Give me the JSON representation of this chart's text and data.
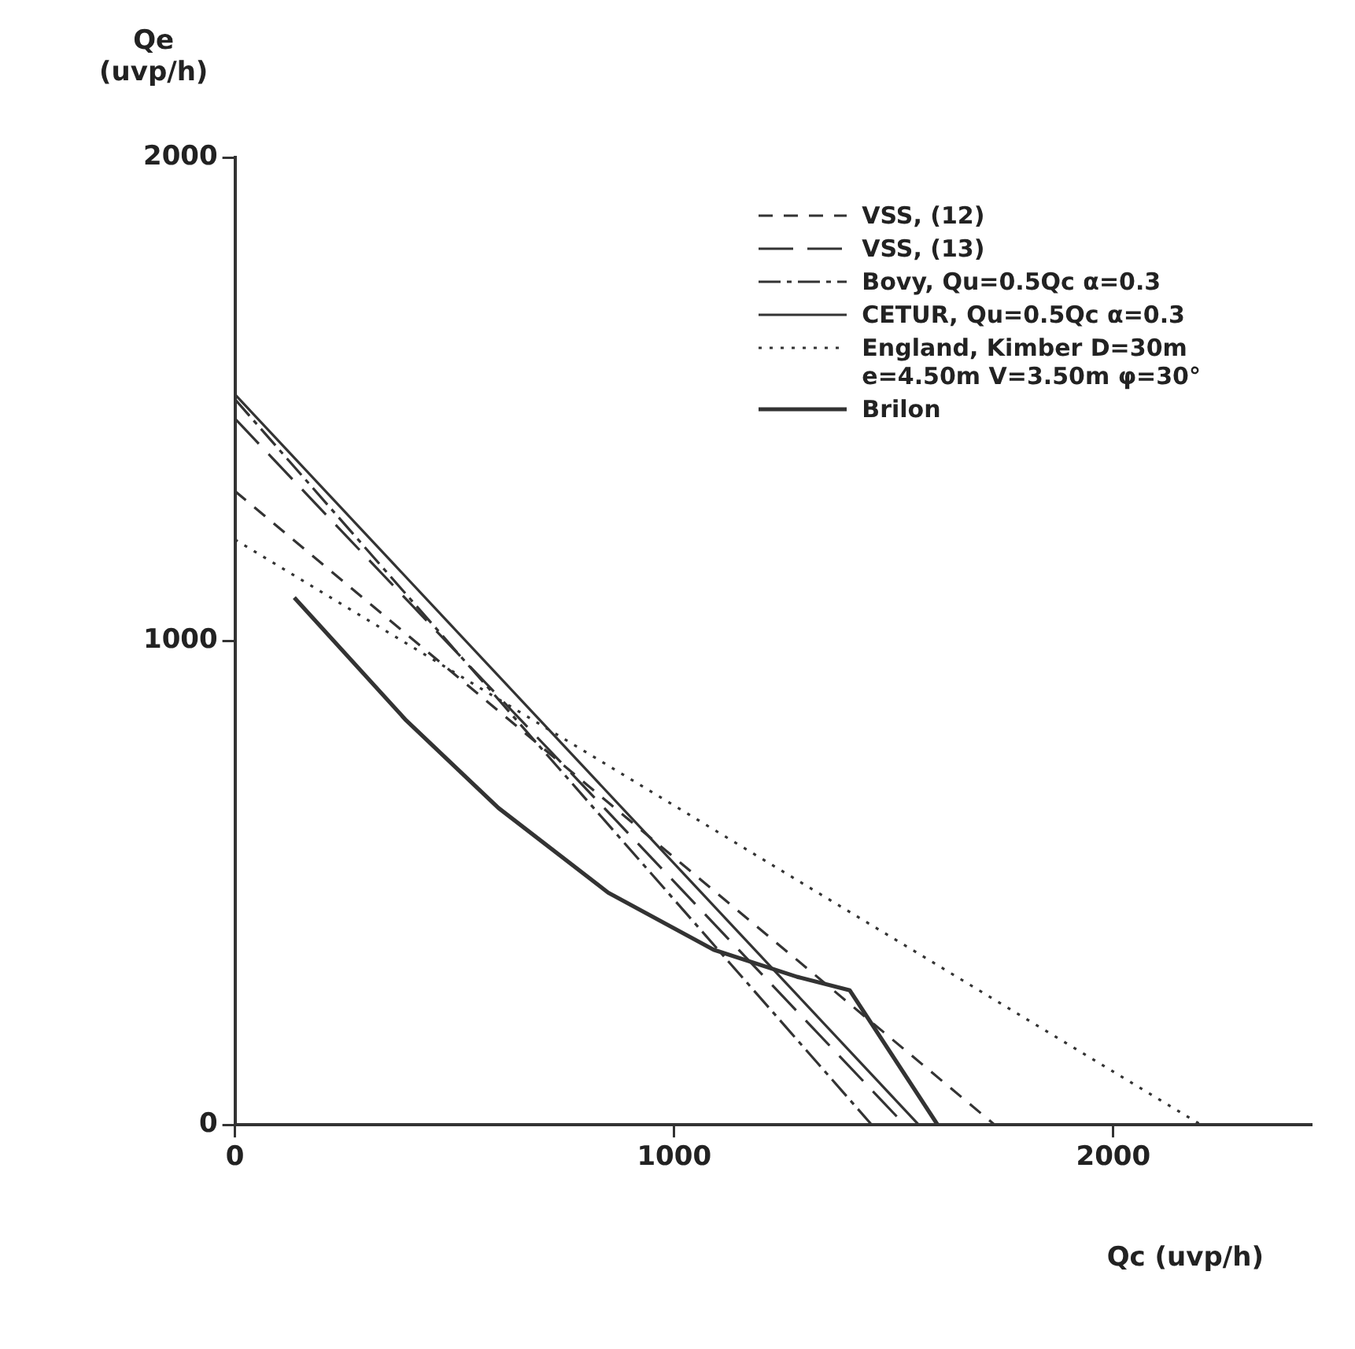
{
  "chart_data": {
    "type": "line",
    "xlabel": "Qc (uvp/h)",
    "ylabel": "Qe\n(uvp/h)",
    "xlim": [
      0,
      2450
    ],
    "ylim": [
      0,
      2000
    ],
    "xticks": [
      0,
      1000,
      2000
    ],
    "yticks": [
      0,
      1000,
      2000
    ],
    "grid": false,
    "legend": "top right",
    "marker": "none",
    "series": [
      {
        "name": "VSS, (12)",
        "color": "#333333",
        "line_style": "dashed",
        "x": [
          0,
          1730
        ],
        "values": [
          1310,
          0
        ]
      },
      {
        "name": "VSS, (13)",
        "color": "#333333",
        "line_style": "dashed",
        "x": [
          0,
          1525
        ],
        "values": [
          1460,
          0
        ]
      },
      {
        "name": "Bovy, Qu=0.5Qc  α=0.3",
        "color": "#333333",
        "line_style": "dashed",
        "x": [
          0,
          1450
        ],
        "values": [
          1500,
          0
        ]
      },
      {
        "name": "CETUR, Qu=0.5Qc  α=0.3",
        "color": "#333333",
        "line_style": "solid",
        "x": [
          0,
          1557
        ],
        "values": [
          1510,
          0
        ]
      },
      {
        "name": "England, Kimber D=30m\ne=4.50m  V=3.50m  φ=30°",
        "color": "#333333",
        "line_style": "dotted",
        "x": [
          0,
          2200
        ],
        "values": [
          1210,
          0
        ]
      },
      {
        "name": "Brilon",
        "color": "#333333",
        "line_style": "solid",
        "x": [
          135,
          390,
          600,
          850,
          1090,
          1280,
          1400,
          1600
        ],
        "values": [
          1090,
          836,
          655,
          480,
          362,
          306,
          278,
          0
        ]
      }
    ]
  }
}
